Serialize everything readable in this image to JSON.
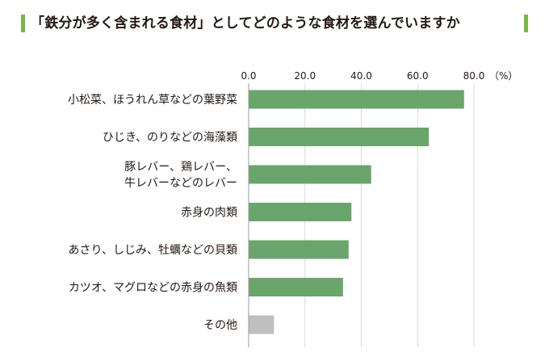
{
  "title": "「鉄分が多く含まれる食材」としてどのような食材を選んでいますか",
  "colors": {
    "accent": "#7ab648",
    "bar": "#6aa56b",
    "bar_other": "#bfbfbf",
    "axis": "#9a9a9a"
  },
  "chart_data": {
    "type": "bar",
    "orientation": "horizontal",
    "categories": [
      [
        "小松菜、ほうれん草などの葉野菜"
      ],
      [
        "ひじき、のりなどの海藻類"
      ],
      [
        "豚レバー、鶏レバー、",
        "牛レバーなどのレバー"
      ],
      [
        "赤身の肉類"
      ],
      [
        "あさり、しじみ、牡蠣などの貝類"
      ],
      [
        "カツオ、マグロなどの赤身の魚類"
      ],
      [
        "その他"
      ]
    ],
    "values": [
      76.5,
      64.0,
      43.5,
      36.5,
      35.5,
      33.5,
      9.0
    ],
    "xticks": [
      "0.0",
      "20.0",
      "40.0",
      "60.0",
      "80.0"
    ],
    "xlim": [
      0,
      80
    ],
    "unit": "（%）",
    "grid": true,
    "legend": "none"
  }
}
